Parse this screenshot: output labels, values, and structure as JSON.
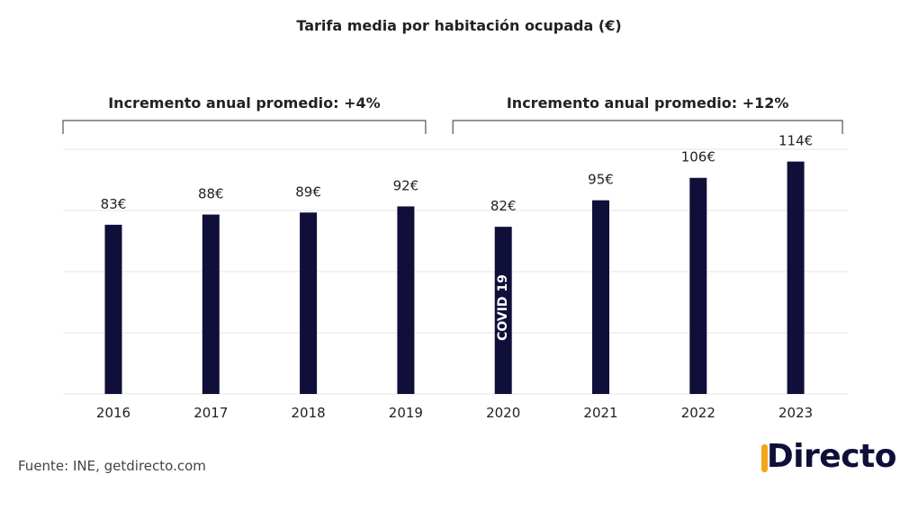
{
  "chart_data": {
    "type": "bar",
    "title": "Tarifa media por habitación ocupada (€)",
    "categories": [
      "2016",
      "2017",
      "2018",
      "2019",
      "2020",
      "2021",
      "2022",
      "2023"
    ],
    "values": [
      83,
      88,
      89,
      92,
      82,
      95,
      106,
      114
    ],
    "value_labels": [
      "83€",
      "88€",
      "89€",
      "92€",
      "82€",
      "95€",
      "106€",
      "114€"
    ],
    "ylim": [
      0,
      120
    ],
    "grid": true,
    "bar_color": "#0f0f3a",
    "annotations": {
      "brackets": [
        {
          "label": "Incremento anual promedio: +4%",
          "from": "2016",
          "to": "2019"
        },
        {
          "label": "Incremento anual promedio: +12%",
          "from": "2020",
          "to": "2023"
        }
      ],
      "bar_text": {
        "category": "2020",
        "text": "COVID 19"
      }
    }
  },
  "footer": {
    "source": "Fuente: INE, getdirecto.com",
    "logo_text": "Directo",
    "logo_accent_color": "#f2a51a"
  }
}
